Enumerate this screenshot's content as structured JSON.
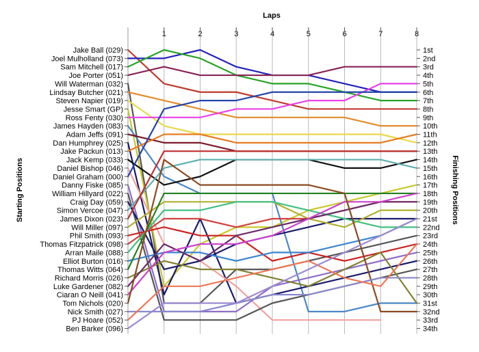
{
  "chart_data": {
    "type": "line",
    "title": "",
    "top_axis_label": "Laps",
    "left_axis_label": "Starting Positions",
    "right_axis_label": "Finishing Positions",
    "x": [
      1,
      2,
      3,
      4,
      5,
      6,
      7,
      8
    ],
    "grid": "vertical",
    "positions": [
      "1st",
      "2nd",
      "3rd",
      "4th",
      "5th",
      "6th",
      "7th",
      "8th",
      "9th",
      "10th",
      "11th",
      "12th",
      "13th",
      "14th",
      "15th",
      "16th",
      "17th",
      "18th",
      "19th",
      "20th",
      "21st",
      "22nd",
      "23rd",
      "24th",
      "25th",
      "26th",
      "27th",
      "28th",
      "29th",
      "30th",
      "31st",
      "32nd",
      "33rd",
      "34th"
    ],
    "series": [
      {
        "name": "Jake Ball (029)",
        "color": "#c0392b",
        "start": 1,
        "laps": [
          5,
          6,
          6,
          7,
          8,
          8,
          8,
          8
        ]
      },
      {
        "name": "Joel Mulholland (073)",
        "color": "#2222bb",
        "start": 2,
        "laps": [
          2,
          1,
          3,
          4,
          4,
          5,
          6,
          6
        ]
      },
      {
        "name": "Sam Mitchell (017)",
        "color": "#27a227",
        "start": 3,
        "laps": [
          1,
          2,
          4,
          5,
          5,
          6,
          7,
          7
        ]
      },
      {
        "name": "Joe Porter (051)",
        "color": "#882255",
        "start": 4,
        "laps": [
          3,
          4,
          4,
          4,
          4,
          3,
          3,
          3
        ]
      },
      {
        "name": "Will Waterman (032)",
        "color": "#555555",
        "start": 5,
        "laps": [
          31,
          31,
          27,
          27,
          26,
          25,
          24,
          23
        ]
      },
      {
        "name": "Lindsay Butcher (021)",
        "color": "#e38b2a",
        "start": 6,
        "laps": [
          7,
          8,
          9,
          9,
          9,
          9,
          10,
          10
        ]
      },
      {
        "name": "Steven Napier (019)",
        "color": "#e8d84a",
        "start": 7,
        "laps": [
          10,
          11,
          11,
          11,
          11,
          11,
          11,
          12
        ]
      },
      {
        "name": "Jesse Smart (GP)",
        "color": "#c8c829",
        "start": 8,
        "laps": [
          29,
          24,
          22,
          22,
          20,
          19,
          18,
          17
        ]
      },
      {
        "name": "Ross Fenty (030)",
        "color": "#e840e8",
        "start": 9,
        "laps": [
          9,
          9,
          8,
          8,
          7,
          7,
          5,
          5
        ]
      },
      {
        "name": "James Hayden (083)",
        "color": "#4a86c8",
        "start": 10,
        "laps": [
          16,
          18,
          18,
          18,
          32,
          32,
          31,
          31
        ]
      },
      {
        "name": "Adam Jeffs (091)",
        "color": "#7a1a2a",
        "start": 11,
        "laps": [
          12,
          12,
          13,
          13,
          13,
          13,
          13,
          13
        ]
      },
      {
        "name": "Dan Humphrey (025)",
        "color": "#1a1a6a",
        "start": 12,
        "laps": [
          30,
          21,
          31,
          30,
          29,
          28,
          27,
          26
        ]
      },
      {
        "name": "Jake Packun (013)",
        "color": "#e87a20",
        "start": 13,
        "laps": [
          11,
          11,
          12,
          12,
          12,
          12,
          12,
          11
        ]
      },
      {
        "name": "Jack Kemp (033)",
        "color": "#111111",
        "start": 14,
        "laps": [
          17,
          16,
          14,
          14,
          14,
          15,
          15,
          14
        ]
      },
      {
        "name": "Daniel Bishop (046)",
        "color": "#f4a0a0",
        "start": 15,
        "laps": [
          24,
          26,
          29,
          33,
          33,
          33,
          33,
          null
        ]
      },
      {
        "name": "Daniel Graham (000)",
        "color": "#2244aa",
        "start": 16,
        "laps": [
          8,
          7,
          7,
          6,
          6,
          6,
          6,
          6
        ]
      },
      {
        "name": "Danny Fiske (085)",
        "color": "#8e6bc8",
        "start": 17,
        "laps": [
          32,
          32,
          32,
          29,
          28,
          27,
          26,
          25
        ]
      },
      {
        "name": "William Hillyard (022)",
        "color": "#555555",
        "start": 18,
        "laps": [
          33,
          33,
          33,
          31,
          30,
          29,
          28,
          27
        ]
      },
      {
        "name": "Craig Day (059)",
        "color": "#1a1a6a",
        "start": 19,
        "laps": [
          27,
          26,
          24,
          23,
          22,
          21,
          21,
          21
        ]
      },
      {
        "name": "Simon Vercoe (047)",
        "color": "#5fb0b0",
        "start": 20,
        "laps": [
          15,
          14,
          14,
          14,
          14,
          14,
          14,
          15
        ]
      },
      {
        "name": "James Dixon (023)",
        "color": "#c03030",
        "start": 21,
        "laps": [
          13,
          13,
          13,
          13,
          13,
          13,
          13,
          13
        ]
      },
      {
        "name": "Will Miller (097)",
        "color": "#b0b030",
        "start": 22,
        "laps": [
          19,
          19,
          19,
          19,
          21,
          22,
          20,
          20
        ]
      },
      {
        "name": "Phil Smith (093)",
        "color": "#cc2222",
        "start": 23,
        "laps": [
          22,
          23,
          23,
          26,
          25,
          26,
          25,
          24
        ]
      },
      {
        "name": "Thomas Fitzpatrick (098)",
        "color": "#d04040",
        "start": 24,
        "laps": [
          21,
          21,
          22,
          21,
          21,
          20,
          19,
          19
        ]
      },
      {
        "name": "Arran Maile (088)",
        "color": "#40c080",
        "start": 25,
        "laps": [
          20,
          20,
          19,
          19,
          20,
          21,
          22,
          22
        ]
      },
      {
        "name": "Elliot Burton (016)",
        "color": "#3b84d0",
        "start": 26,
        "laps": [
          25,
          25,
          26,
          25,
          25,
          24,
          23,
          21
        ]
      },
      {
        "name": "Thomas Witts (064)",
        "color": "#208020",
        "start": 27,
        "laps": [
          18,
          18,
          18,
          18,
          18,
          18,
          18,
          18
        ]
      },
      {
        "name": "Richard Morris (026)",
        "color": "#808030",
        "start": 28,
        "laps": [
          26,
          27,
          27,
          28,
          29,
          27,
          25,
          31
        ]
      },
      {
        "name": "Luke Gardener (082)",
        "color": "#6a2a6a",
        "start": 29,
        "laps": [
          24,
          26,
          23,
          22,
          21,
          20,
          19,
          19
        ]
      },
      {
        "name": "Ciaran O Neill (041)",
        "color": "#cc40cc",
        "start": 30,
        "laps": [
          25,
          24,
          24,
          23,
          21,
          19,
          19,
          18
        ]
      },
      {
        "name": "Tom Nichols (020)",
        "color": "#8a4a20",
        "start": 31,
        "laps": [
          14,
          17,
          17,
          17,
          17,
          18,
          32,
          32
        ]
      },
      {
        "name": "Nick Smith (027)",
        "color": "#8888cc",
        "start": 32,
        "laps": [
          32,
          32,
          31,
          30,
          30,
          29,
          28,
          28
        ]
      },
      {
        "name": "PJ Hoare (052)",
        "color": "#ee7755",
        "start": 33,
        "laps": [
          29,
          29,
          28,
          27,
          26,
          28,
          29,
          24
        ]
      },
      {
        "name": "Ben Barker (096)",
        "color": "#9a8ad0",
        "start": 34,
        "laps": [
          31,
          31,
          31,
          29,
          27,
          25,
          23,
          21
        ]
      }
    ]
  }
}
